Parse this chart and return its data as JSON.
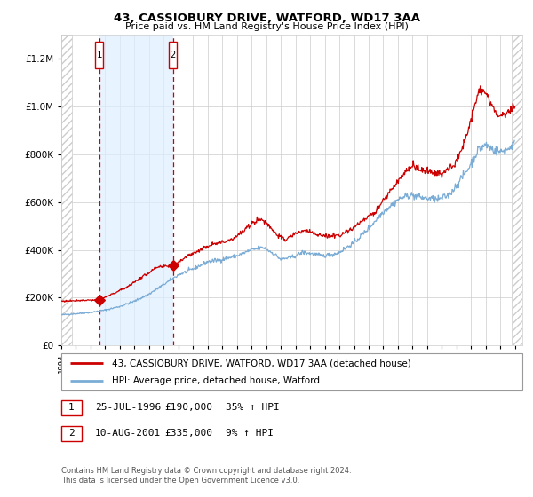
{
  "title": "43, CASSIOBURY DRIVE, WATFORD, WD17 3AA",
  "subtitle": "Price paid vs. HM Land Registry's House Price Index (HPI)",
  "legend_line1": "43, CASSIOBURY DRIVE, WATFORD, WD17 3AA (detached house)",
  "legend_line2": "HPI: Average price, detached house, Watford",
  "annotation1_date": "25-JUL-1996",
  "annotation1_price": "£190,000",
  "annotation1_hpi": "35% ↑ HPI",
  "annotation1_year": 1996.58,
  "annotation1_value": 190000,
  "annotation2_date": "10-AUG-2001",
  "annotation2_price": "£335,000",
  "annotation2_hpi": "9% ↑ HPI",
  "annotation2_year": 2001.62,
  "annotation2_value": 335000,
  "xmin": 1994.0,
  "xmax": 2025.5,
  "ymin": 0,
  "ymax": 1300000,
  "hatch_left_end": 1994.75,
  "hatch_right_start": 2024.75,
  "shade_start": 1996.58,
  "shade_end": 2001.62,
  "price_line_color": "#cc0000",
  "hpi_line_color": "#7aacd6",
  "dot_color": "#cc0000",
  "background_color": "#ffffff",
  "footer": "Contains HM Land Registry data © Crown copyright and database right 2024.\nThis data is licensed under the Open Government Licence v3.0."
}
